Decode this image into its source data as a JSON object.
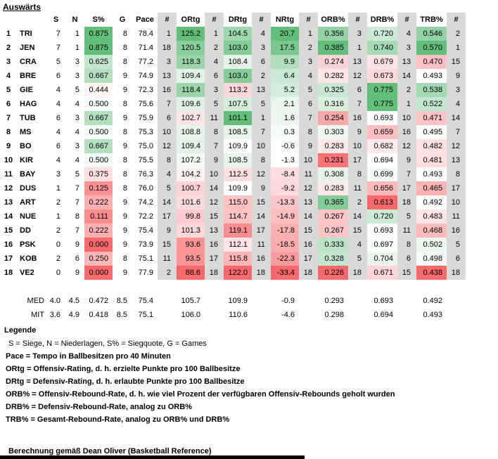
{
  "title": "Auswärts",
  "colors": {
    "scale_green": "#63BE7B",
    "scale_red": "#F8696B",
    "rank_column_gray": "#D9D9D9",
    "bottom_bar_black": "#000000"
  },
  "table": {
    "headers": [
      "",
      "",
      "S",
      "N",
      "S%",
      "G",
      "Pace",
      "#",
      "ORtg",
      "#",
      "DRtg",
      "#",
      "NRtg",
      "#",
      "ORB%",
      "#",
      "DRB%",
      "#",
      "TRB%",
      "#"
    ],
    "rows": [
      {
        "rank": "1",
        "team": "TRI",
        "s": "7",
        "n": "1",
        "spct": "0.875",
        "g": "8",
        "pace": "78.4",
        "pace_r": "1",
        "ortg": "125.2",
        "ortg_r": "1",
        "drtg": "104.5",
        "drtg_r": "4",
        "nrtg": "20.7",
        "nrtg_r": "1",
        "orb": "0.356",
        "orb_r": "3",
        "drb": "0.720",
        "drb_r": "4",
        "trb": "0.546",
        "trb_r": "2"
      },
      {
        "rank": "2",
        "team": "JEN",
        "s": "7",
        "n": "1",
        "spct": "0.875",
        "g": "8",
        "pace": "71.4",
        "pace_r": "18",
        "ortg": "120.5",
        "ortg_r": "2",
        "drtg": "103.0",
        "drtg_r": "3",
        "nrtg": "17.5",
        "nrtg_r": "2",
        "orb": "0.385",
        "orb_r": "1",
        "drb": "0.740",
        "drb_r": "3",
        "trb": "0.570",
        "trb_r": "1"
      },
      {
        "rank": "3",
        "team": "CRA",
        "s": "5",
        "n": "3",
        "spct": "0.625",
        "g": "8",
        "pace": "77.2",
        "pace_r": "3",
        "ortg": "118.3",
        "ortg_r": "4",
        "drtg": "108.4",
        "drtg_r": "6",
        "nrtg": "9.9",
        "nrtg_r": "3",
        "orb": "0.274",
        "orb_r": "13",
        "drb": "0.679",
        "drb_r": "13",
        "trb": "0.470",
        "trb_r": "15"
      },
      {
        "rank": "4",
        "team": "BRE",
        "s": "6",
        "n": "3",
        "spct": "0.667",
        "g": "9",
        "pace": "74.9",
        "pace_r": "13",
        "ortg": "109.4",
        "ortg_r": "6",
        "drtg": "103.0",
        "drtg_r": "2",
        "nrtg": "6.4",
        "nrtg_r": "4",
        "orb": "0.282",
        "orb_r": "12",
        "drb": "0.673",
        "drb_r": "14",
        "trb": "0.493",
        "trb_r": "9"
      },
      {
        "rank": "5",
        "team": "GIE",
        "s": "4",
        "n": "5",
        "spct": "0.444",
        "g": "9",
        "pace": "72.3",
        "pace_r": "16",
        "ortg": "118.4",
        "ortg_r": "3",
        "drtg": "113.2",
        "drtg_r": "13",
        "nrtg": "5.2",
        "nrtg_r": "5",
        "orb": "0.325",
        "orb_r": "6",
        "drb": "0.775",
        "drb_r": "2",
        "trb": "0.538",
        "trb_r": "3"
      },
      {
        "rank": "6",
        "team": "HAG",
        "s": "4",
        "n": "4",
        "spct": "0.500",
        "g": "8",
        "pace": "75.6",
        "pace_r": "7",
        "ortg": "109.6",
        "ortg_r": "5",
        "drtg": "107.5",
        "drtg_r": "5",
        "nrtg": "2.1",
        "nrtg_r": "6",
        "orb": "0.316",
        "orb_r": "7",
        "drb": "0.775",
        "drb_r": "1",
        "trb": "0.522",
        "trb_r": "4"
      },
      {
        "rank": "7",
        "team": "TUB",
        "s": "6",
        "n": "3",
        "spct": "0.667",
        "g": "9",
        "pace": "75.9",
        "pace_r": "6",
        "ortg": "102.7",
        "ortg_r": "11",
        "drtg": "101.1",
        "drtg_r": "1",
        "nrtg": "1.6",
        "nrtg_r": "7",
        "orb": "0.254",
        "orb_r": "16",
        "drb": "0.693",
        "drb_r": "10",
        "trb": "0.471",
        "trb_r": "14"
      },
      {
        "rank": "8",
        "team": "MS",
        "s": "4",
        "n": "4",
        "spct": "0.500",
        "g": "8",
        "pace": "75.3",
        "pace_r": "10",
        "ortg": "108.8",
        "ortg_r": "8",
        "drtg": "108.5",
        "drtg_r": "7",
        "nrtg": "0.3",
        "nrtg_r": "8",
        "orb": "0.303",
        "orb_r": "9",
        "drb": "0.659",
        "drb_r": "16",
        "trb": "0.495",
        "trb_r": "7"
      },
      {
        "rank": "9",
        "team": "BO",
        "s": "6",
        "n": "3",
        "spct": "0.667",
        "g": "9",
        "pace": "75.0",
        "pace_r": "12",
        "ortg": "109.4",
        "ortg_r": "7",
        "drtg": "109.9",
        "drtg_r": "10",
        "nrtg": "-0.6",
        "nrtg_r": "9",
        "orb": "0.283",
        "orb_r": "10",
        "drb": "0.682",
        "drb_r": "12",
        "trb": "0.482",
        "trb_r": "12"
      },
      {
        "rank": "10",
        "team": "KIR",
        "s": "4",
        "n": "4",
        "spct": "0.500",
        "g": "8",
        "pace": "75.5",
        "pace_r": "8",
        "ortg": "107.2",
        "ortg_r": "9",
        "drtg": "108.5",
        "drtg_r": "8",
        "nrtg": "-1.3",
        "nrtg_r": "10",
        "orb": "0.231",
        "orb_r": "17",
        "drb": "0.694",
        "drb_r": "9",
        "trb": "0.481",
        "trb_r": "13"
      },
      {
        "rank": "11",
        "team": "BAY",
        "s": "3",
        "n": "5",
        "spct": "0.375",
        "g": "8",
        "pace": "76.3",
        "pace_r": "4",
        "ortg": "104.2",
        "ortg_r": "10",
        "drtg": "112.5",
        "drtg_r": "12",
        "nrtg": "-8.4",
        "nrtg_r": "11",
        "orb": "0.308",
        "orb_r": "8",
        "drb": "0.699",
        "drb_r": "7",
        "trb": "0.493",
        "trb_r": "8"
      },
      {
        "rank": "12",
        "team": "DUS",
        "s": "1",
        "n": "7",
        "spct": "0.125",
        "g": "8",
        "pace": "76.0",
        "pace_r": "5",
        "ortg": "100.7",
        "ortg_r": "14",
        "drtg": "109.9",
        "drtg_r": "9",
        "nrtg": "-9.2",
        "nrtg_r": "12",
        "orb": "0.283",
        "orb_r": "11",
        "drb": "0.656",
        "drb_r": "17",
        "trb": "0.465",
        "trb_r": "17"
      },
      {
        "rank": "13",
        "team": "ART",
        "s": "2",
        "n": "7",
        "spct": "0.222",
        "g": "9",
        "pace": "74.2",
        "pace_r": "14",
        "ortg": "101.6",
        "ortg_r": "12",
        "drtg": "115.0",
        "drtg_r": "15",
        "nrtg": "-13.3",
        "nrtg_r": "13",
        "orb": "0.365",
        "orb_r": "2",
        "drb": "0.613",
        "drb_r": "18",
        "trb": "0.492",
        "trb_r": "10"
      },
      {
        "rank": "14",
        "team": "NUE",
        "s": "1",
        "n": "8",
        "spct": "0.111",
        "g": "9",
        "pace": "72.2",
        "pace_r": "17",
        "ortg": "99.8",
        "ortg_r": "15",
        "drtg": "114.7",
        "drtg_r": "14",
        "nrtg": "-14.9",
        "nrtg_r": "14",
        "orb": "0.267",
        "orb_r": "14",
        "drb": "0.720",
        "drb_r": "5",
        "trb": "0.483",
        "trb_r": "11"
      },
      {
        "rank": "15",
        "team": "DD",
        "s": "2",
        "n": "7",
        "spct": "0.222",
        "g": "9",
        "pace": "75.4",
        "pace_r": "9",
        "ortg": "101.3",
        "ortg_r": "13",
        "drtg": "119.1",
        "drtg_r": "17",
        "nrtg": "-17.8",
        "nrtg_r": "15",
        "orb": "0.267",
        "orb_r": "15",
        "drb": "0.693",
        "drb_r": "11",
        "trb": "0.468",
        "trb_r": "16"
      },
      {
        "rank": "16",
        "team": "PSK",
        "s": "0",
        "n": "9",
        "spct": "0.000",
        "g": "9",
        "pace": "73.9",
        "pace_r": "15",
        "ortg": "93.6",
        "ortg_r": "16",
        "drtg": "112.1",
        "drtg_r": "11",
        "nrtg": "-18.5",
        "nrtg_r": "16",
        "orb": "0.333",
        "orb_r": "4",
        "drb": "0.697",
        "drb_r": "8",
        "trb": "0.502",
        "trb_r": "5"
      },
      {
        "rank": "17",
        "team": "KOB",
        "s": "2",
        "n": "6",
        "spct": "0.250",
        "g": "8",
        "pace": "75.1",
        "pace_r": "11",
        "ortg": "93.5",
        "ortg_r": "17",
        "drtg": "115.8",
        "drtg_r": "16",
        "nrtg": "-22.3",
        "nrtg_r": "17",
        "orb": "0.328",
        "orb_r": "5",
        "drb": "0.704",
        "drb_r": "6",
        "trb": "0.498",
        "trb_r": "6"
      },
      {
        "rank": "18",
        "team": "VE2",
        "s": "0",
        "n": "9",
        "spct": "0.000",
        "g": "9",
        "pace": "77.9",
        "pace_r": "2",
        "ortg": "88.6",
        "ortg_r": "18",
        "drtg": "122.0",
        "drtg_r": "18",
        "nrtg": "-33.4",
        "nrtg_r": "18",
        "orb": "0.226",
        "orb_r": "18",
        "drb": "0.671",
        "drb_r": "15",
        "trb": "0.438",
        "trb_r": "18"
      }
    ],
    "summary": [
      {
        "team": "MED",
        "s": "4.0",
        "n": "4.5",
        "spct": "0.472",
        "g": "8.5",
        "pace": "75.4",
        "ortg": "105.7",
        "drtg": "109.9",
        "nrtg": "-0.9",
        "orb": "0.293",
        "drb": "0.693",
        "trb": "0.492"
      },
      {
        "team": "MIT",
        "s": "3.6",
        "n": "4.9",
        "spct": "0.418",
        "g": "8.5",
        "pace": "75.1",
        "ortg": "106.0",
        "drtg": "110.6",
        "nrtg": "-4.6",
        "orb": "0.298",
        "drb": "0.694",
        "trb": "0.493"
      }
    ]
  },
  "legend": {
    "title": "Legende",
    "lines": [
      "S = Siege, N = Niederlagen, S% = Siegquote, G = Games",
      "Pace = Tempo in Ballbesitzen pro 40 Minuten",
      "ORtg = Offensiv-Rating, d. h. erzielte Punkte pro 100 Ballbesitze",
      "DRtg = Defensiv-Rating, d. h. erlaubte Punkte pro 100 Ballbesitze",
      "ORB% = Offensiv-Rebound-Rate, d. h. wie viel Prozent der verfügbaren Offensiv-Rebounds geholt wurden",
      "DRB% = Defensiv-Rebound-Rate, analog zu ORB%",
      "TRB% = Gesamt-Rebound-Rate, analog zu ORB% und DRB%"
    ],
    "footnote": "Berechnung gemäß Dean Oliver (Basketball Reference)"
  }
}
